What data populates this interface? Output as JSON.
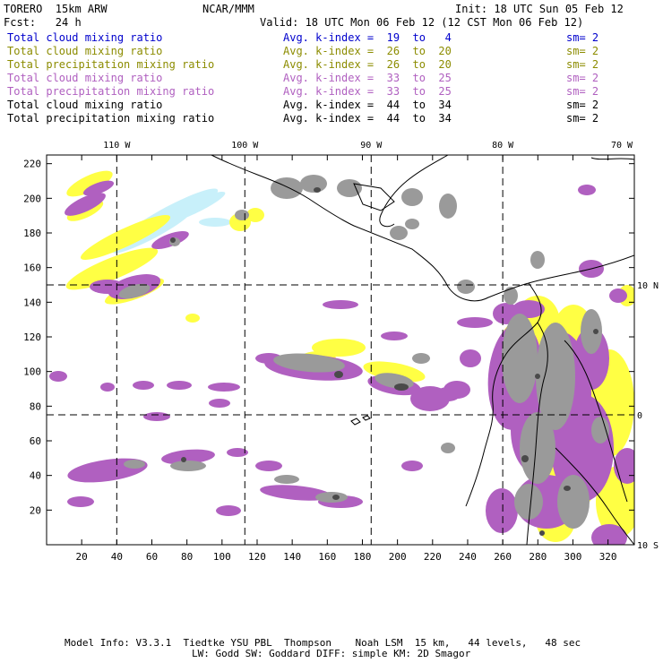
{
  "header": {
    "model": "TORERO  15km ARW",
    "org": "NCAR/MMM",
    "init": "Init: 18 UTC Sun 05 Feb 12",
    "fcst": "Fcst:   24 h",
    "valid": "Valid: 18 UTC Mon 06 Feb 12 (12 CST Mon 06 Feb 12)"
  },
  "legend": [
    {
      "field": "Total cloud mixing ratio",
      "k": "Avg. k-index =  19  to   4",
      "sm": "sm= 2",
      "color": "#0000cc"
    },
    {
      "field": "Total cloud mixing ratio",
      "k": "Avg. k-index =  26  to  20",
      "sm": "sm= 2",
      "color": "#8c8c00"
    },
    {
      "field": "Total precipitation mixing ratio",
      "k": "Avg. k-index =  26  to  20",
      "sm": "sm= 2",
      "color": "#8c8c00"
    },
    {
      "field": "Total cloud mixing ratio",
      "k": "Avg. k-index =  33  to  25",
      "sm": "sm= 2",
      "color": "#b060c0"
    },
    {
      "field": "Total precipitation mixing ratio",
      "k": "Avg. k-index =  33  to  25",
      "sm": "sm= 2",
      "color": "#b060c0"
    },
    {
      "field": "Total cloud mixing ratio",
      "k": "Avg. k-index =  44  to  34",
      "sm": "sm= 2",
      "color": "#000000"
    },
    {
      "field": "Total precipitation mixing ratio",
      "k": "Avg. k-index =  44  to  34",
      "sm": "sm= 2",
      "color": "#000000"
    }
  ],
  "map": {
    "lon_labels": [
      "110 W",
      "100 W",
      "90 W",
      "80 W",
      "70 W"
    ],
    "lat_labels": [
      "10 N",
      "0",
      "10 S"
    ],
    "x_ticks": [
      "20",
      "40",
      "60",
      "80",
      "100",
      "120",
      "140",
      "160",
      "180",
      "200",
      "220",
      "240",
      "260",
      "280",
      "300",
      "320"
    ],
    "y_ticks": [
      "20",
      "40",
      "60",
      "80",
      "100",
      "120",
      "140",
      "160",
      "180",
      "200",
      "220"
    ],
    "grid_x": [
      40,
      113,
      185,
      260
    ],
    "grid_y": [
      75,
      150
    ],
    "x_range": [
      0,
      335
    ],
    "y_range": [
      0,
      225
    ],
    "colors": {
      "light_blue": "#c8f0fa",
      "yellow": "#ffff44",
      "purple": "#b060c0",
      "gray": "#9a9a9a",
      "dark_gray": "#4a4a4a",
      "coast": "#000000"
    }
  },
  "footer": {
    "line1": "Model Info: V3.3.1  Tiedtke YSU PBL  Thompson    Noah LSM  15 km,   44 levels,   48 sec",
    "line2": "LW: Godd SW: Goddard DIFF: simple KM: 2D Smagor"
  }
}
